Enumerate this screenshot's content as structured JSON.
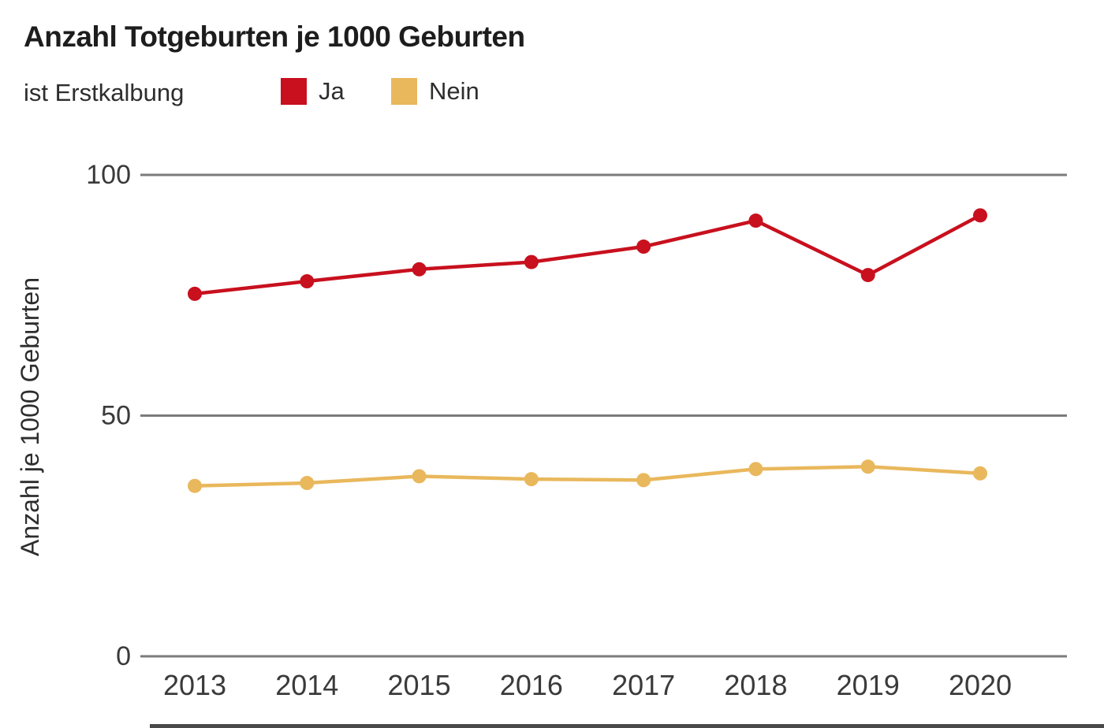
{
  "title": "Anzahl Totgeburten je 1000 Geburten",
  "legend": {
    "label": "ist Erstkalbung",
    "items": [
      {
        "label": "Ja",
        "color": "#c8101e"
      },
      {
        "label": "Nein",
        "color": "#e9b85c"
      }
    ]
  },
  "chart_data": {
    "type": "line",
    "title": "Anzahl Totgeburten je 1000 Geburten",
    "categories": [
      "2013",
      "2014",
      "2015",
      "2016",
      "2017",
      "2018",
      "2019",
      "2020"
    ],
    "series": [
      {
        "name": "Ja",
        "color": "#c8101e",
        "values": [
          75.3,
          77.9,
          80.4,
          81.9,
          85.1,
          90.5,
          79.2,
          91.6
        ]
      },
      {
        "name": "Nein",
        "color": "#e9b85c",
        "values": [
          35.4,
          36.0,
          37.4,
          36.8,
          36.6,
          38.9,
          39.4,
          38.0
        ]
      }
    ],
    "xlabel": "",
    "ylabel": "Anzahl je 1000 Geburten",
    "yticks": [
      0,
      50,
      100
    ],
    "ylim": [
      0,
      105
    ],
    "grid": true,
    "legend_label": "ist Erstkalbung",
    "legend_position": "top-left",
    "marker": "circle"
  }
}
